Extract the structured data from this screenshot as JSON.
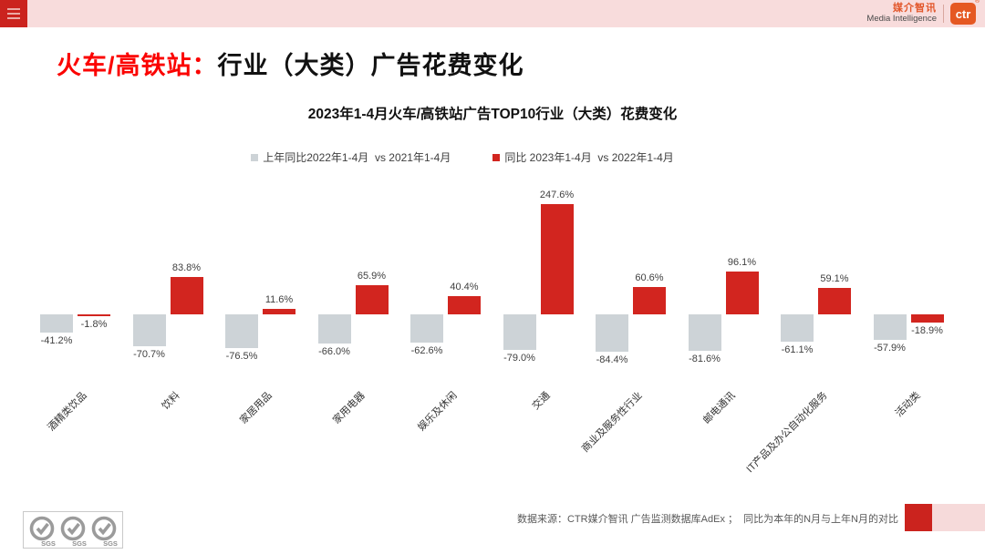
{
  "header": {
    "brand_cn": "媒介智讯",
    "brand_en": "Media Intelligence",
    "brand_logo": "ctr",
    "reg_mark": "®"
  },
  "title": {
    "highlight": "火车/高铁站：",
    "rest": "行业（大类）广告花费变化"
  },
  "chart_data": {
    "type": "bar",
    "title": "2023年1-4月火车/高铁站广告TOP10行业（大类）花费变化",
    "categories": [
      "酒精类饮品",
      "饮料",
      "家居用品",
      "家用电器",
      "娱乐及休闲",
      "交通",
      "商业及服务性行业",
      "邮电通讯",
      "IT产品及办公自动化服务",
      "活动类"
    ],
    "series": [
      {
        "name": "上年同比2022年1-4月  vs 2021年1-4月",
        "color": "#cdd3d7",
        "values": [
          -41.2,
          -70.7,
          -76.5,
          -66.0,
          -62.6,
          -79.0,
          -84.4,
          -81.6,
          -61.1,
          -57.9
        ]
      },
      {
        "name": "同比 2023年1-4月  vs 2022年1-4月",
        "color": "#d2251f",
        "values": [
          -1.8,
          83.8,
          11.6,
          65.9,
          40.4,
          247.6,
          60.6,
          96.1,
          59.1,
          -18.9
        ]
      }
    ],
    "value_suffix": "%",
    "ylim": [
      -100,
      260
    ],
    "grid": false,
    "legend_position": "top",
    "category_label_rotation": -45
  },
  "footer": {
    "source": "数据来源：CTR媒介智讯 广告监测数据库AdEx ；  同比为本年的N月与上年N月的对比",
    "sgs_label": "SGS"
  }
}
